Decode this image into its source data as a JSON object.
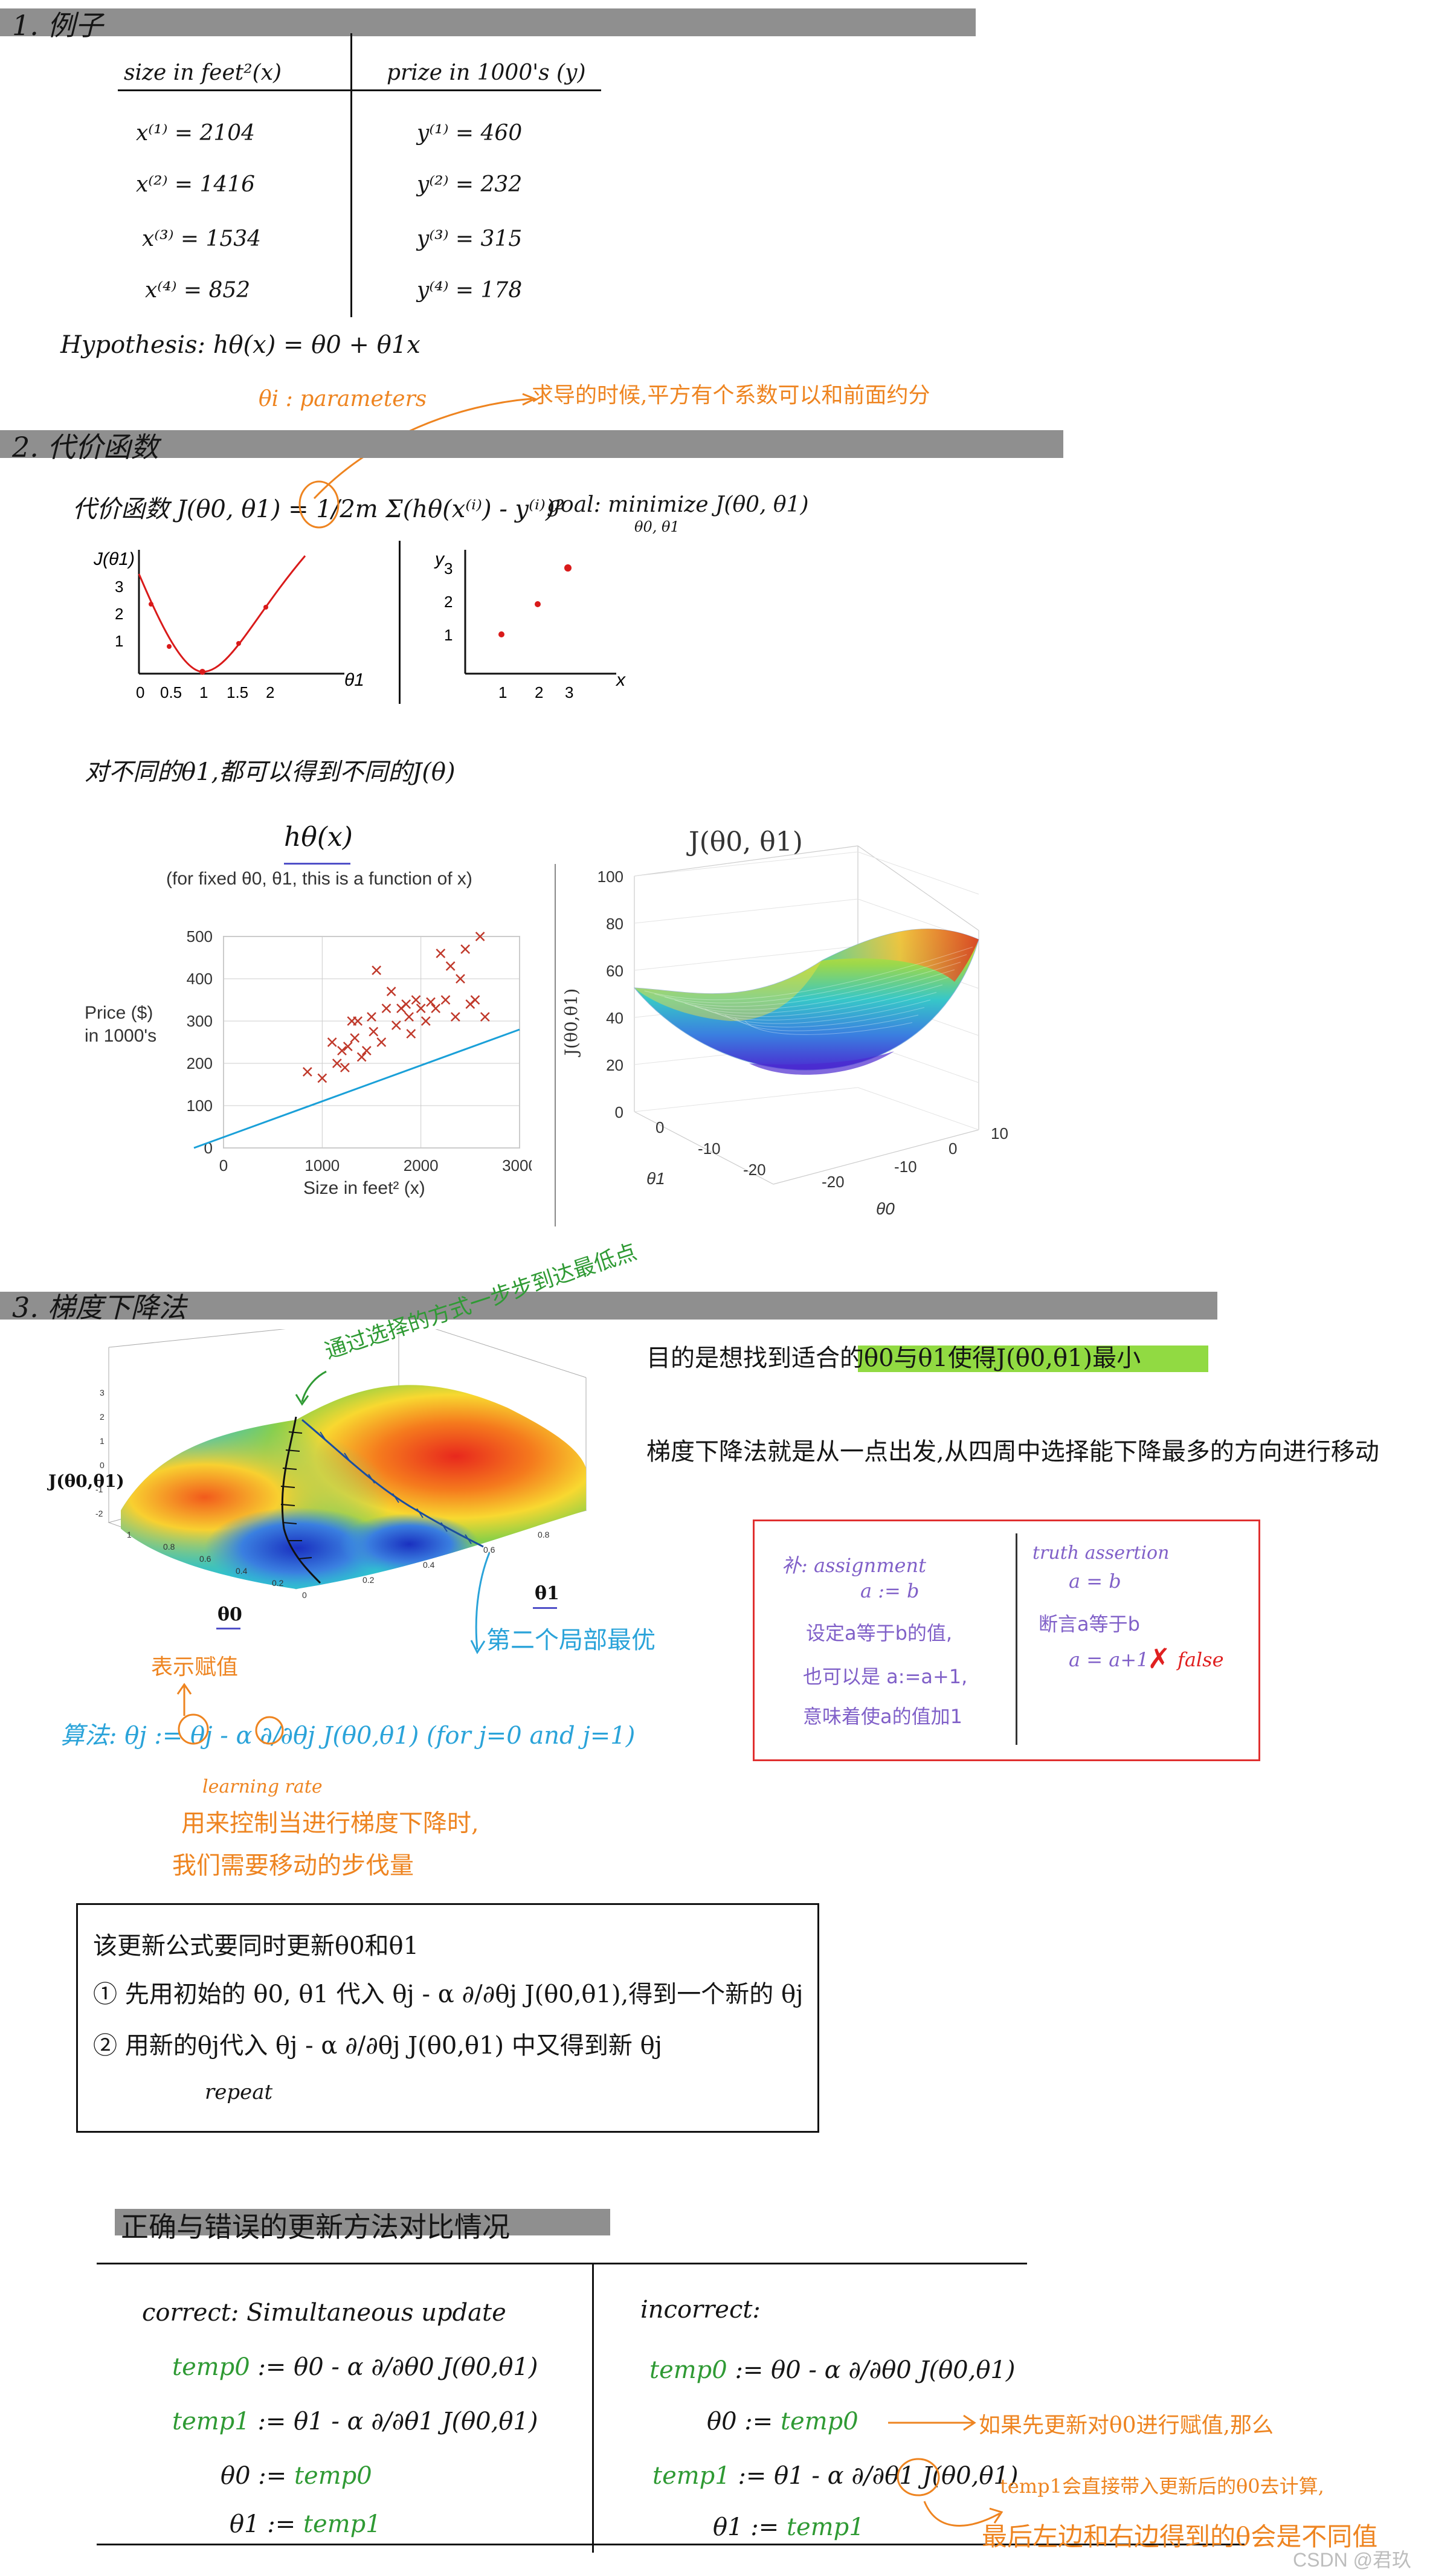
{
  "section1": {
    "title": "1. 例子",
    "col_size_header": "size in feet²(x)",
    "col_price_header": "prize in 1000's (y)",
    "x_values": [
      "x⁽¹⁾ = 2104",
      "x⁽²⁾ = 1416",
      "x⁽³⁾ = 1534",
      "x⁽⁴⁾ = 852"
    ],
    "y_values": [
      "y⁽¹⁾ = 460",
      "y⁽²⁾ = 232",
      "y⁽³⁾ = 315",
      "y⁽⁴⁾ = 178"
    ],
    "hypothesis": "Hypothesis: hθ(x) = θ0 + θ1x",
    "params": "θi : parameters",
    "note": "求导的时候,平方有个系数可以和前面约分"
  },
  "section2": {
    "title": "2. 代价函数",
    "cost_formula": "代价函数 J(θ0, θ1) = 1/2m Σ(hθ(x⁽ⁱ⁾) - y⁽ⁱ⁾)²",
    "goal": "goal: minimize J(θ0, θ1)",
    "goal_sub": "θ0, θ1",
    "note": "对不同的θ1,都可以得到不同的J(θ)",
    "sketch1": {
      "ylabel": "J(θ1)",
      "xlabel": "θ1",
      "yticks": [
        "1",
        "2",
        "3"
      ],
      "xticks": [
        "0",
        "0.5",
        "1",
        "1.5",
        "2"
      ]
    },
    "sketch2": {
      "ylabel": "y",
      "xlabel": "x",
      "yticks": [
        "1",
        "2",
        "3"
      ],
      "xticks": [
        "1",
        "2",
        "3"
      ]
    }
  },
  "chart_data": [
    {
      "type": "scatter",
      "title": "hθ(x)",
      "subtitle": "(for fixed θ0, θ1, this is a function of x)",
      "xlabel": "Size in feet² (x)",
      "ylabel": "Price ($) in 1000's",
      "xlim": [
        0,
        3000
      ],
      "ylim": [
        0,
        500
      ],
      "xticks": [
        "0",
        "1000",
        "2000",
        "3000"
      ],
      "yticks": [
        "0",
        "100",
        "200",
        "300",
        "400",
        "500"
      ],
      "marker_color": "#c0392b",
      "line_color": "#1aa0d8",
      "points": [
        [
          850,
          180
        ],
        [
          1000,
          165
        ],
        [
          1100,
          250
        ],
        [
          1150,
          200
        ],
        [
          1200,
          230
        ],
        [
          1230,
          190
        ],
        [
          1260,
          240
        ],
        [
          1300,
          300
        ],
        [
          1330,
          260
        ],
        [
          1360,
          300
        ],
        [
          1400,
          215
        ],
        [
          1450,
          230
        ],
        [
          1500,
          310
        ],
        [
          1520,
          275
        ],
        [
          1550,
          420
        ],
        [
          1600,
          250
        ],
        [
          1650,
          330
        ],
        [
          1700,
          370
        ],
        [
          1750,
          290
        ],
        [
          1800,
          330
        ],
        [
          1850,
          340
        ],
        [
          1880,
          310
        ],
        [
          1900,
          270
        ],
        [
          1950,
          350
        ],
        [
          2000,
          330
        ],
        [
          2050,
          300
        ],
        [
          2100,
          345
        ],
        [
          2150,
          330
        ],
        [
          2200,
          460
        ],
        [
          2250,
          350
        ],
        [
          2300,
          430
        ],
        [
          2350,
          310
        ],
        [
          2400,
          400
        ],
        [
          2450,
          470
        ],
        [
          2500,
          340
        ],
        [
          2550,
          350
        ],
        [
          2600,
          500
        ],
        [
          2650,
          310
        ]
      ],
      "line": [
        [
          -300,
          0
        ],
        [
          3000,
          280
        ]
      ]
    },
    {
      "type": "surface",
      "title": "J(θ0, θ1)",
      "ylabel": "J(θ0,θ1)",
      "zticks": [
        "0",
        "20",
        "40",
        "60",
        "80",
        "100"
      ],
      "theta1_ticks": [
        "0",
        "-10",
        "-20"
      ],
      "theta0_ticks": [
        "10",
        "0",
        "-10",
        "-20"
      ],
      "theta1_label": "θ1",
      "theta0_label": "θ0"
    }
  ],
  "section3": {
    "title": "3. 梯度下降法",
    "goal_text": "目的是想找到适合的θ0与θ1使得J(θ0,θ1)最小",
    "desc_text": "梯度下降法就是从一点出发,从四周中选择能下降最多的方向进行移动",
    "surface_label": "J(θ0,θ1)",
    "theta0_label": "θ0",
    "theta1_label": "θ1",
    "path_note": "通过选择的方式一步步到达最低点",
    "local_note": "第二个局部最优",
    "assign_note": "表示赋值",
    "algorithm": "算法: θj := θj - α ∂/∂θj J(θ0,θ1)  (for j=0 and j=1)",
    "learning_rate": "learning rate",
    "lr_note1": "用来控制当进行梯度下降时,",
    "lr_note2": "我们需要移动的步伐量",
    "box_left": [
      "补: assignment",
      "a := b",
      "设定a等于b的值,",
      "也可以是 a:=a+1,",
      "意味着使a的值加1"
    ],
    "box_right": [
      "truth assertion",
      "a = b",
      "断言a等于b",
      "a = a+1",
      "false"
    ],
    "update_box": [
      "该更新公式要同时更新θ0和θ1",
      "① 先用初始的 θ0, θ1 代入 θj - α ∂/∂θj J(θ0,θ1),得到一个新的 θj",
      "② 用新的θj代入 θj - α ∂/∂θj J(θ0,θ1) 中又得到新 θj",
      "repeat"
    ]
  },
  "section4": {
    "title": "正确与错误的更新方法对比情况",
    "correct_header": "correct: Simultaneous update",
    "incorrect_header": "incorrect:",
    "correct_temp0_name": "temp0",
    "correct_temp0_expr": ":= θ0 - α ∂/∂θ0 J(θ0,θ1)",
    "correct_temp1_name": "temp1",
    "correct_temp1_expr": ":= θ1 - α ∂/∂θ1 J(θ0,θ1)",
    "correct_assign0": "θ0 :=",
    "correct_assign0_val": "temp0",
    "correct_assign1": "θ1 :=",
    "correct_assign1_val": "temp1",
    "incorrect_temp0_name": "temp0",
    "incorrect_temp0_expr": ":= θ0 - α ∂/∂θ0 J(θ0,θ1)",
    "incorrect_assign0": "θ0 :=",
    "incorrect_assign0_val": "temp0",
    "incorrect_temp1_name": "temp1",
    "incorrect_temp1_expr": ":= θ1 - α ∂/∂θ1 J(θ0,θ1)",
    "incorrect_assign1": "θ1 :=",
    "incorrect_assign1_val": "temp1",
    "note1": "如果先更新对θ0进行赋值,那么",
    "note2": "temp1会直接带入更新后的θ0去计算,",
    "note3": "最后左边和右边得到的θ会是不同值"
  },
  "watermark": "CSDN @君玖"
}
